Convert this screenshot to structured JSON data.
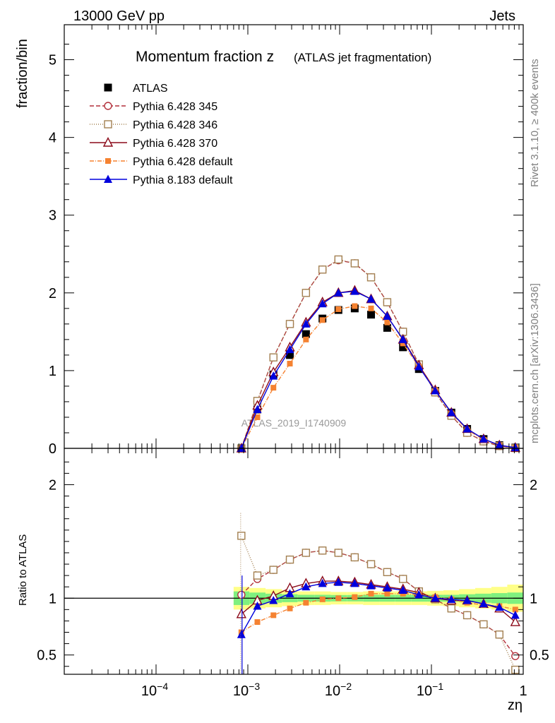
{
  "header": {
    "energy_label": "13000 GeV pp",
    "category_label": "Jets"
  },
  "side_labels": {
    "rivet": "Rivet 3.1.10, ≥ 400k events",
    "source": "mcplots.cern.ch [arXiv:1306.3436]"
  },
  "watermark": "ATLAS_2019_I1740909",
  "colors": {
    "atlas": "#000000",
    "py345": "#b22f3a",
    "py346": "#a38051",
    "py370": "#8b0a1a",
    "pydef": "#f58231",
    "py8": "#0000dd",
    "band_inner": "#7ff07f",
    "band_outer": "#ffff88"
  },
  "chart_data": [
    {
      "type": "line",
      "panel": "main",
      "title": "Momentum fraction z",
      "subtitle": "(ATLAS jet fragmentation)",
      "xlabel": "zη",
      "ylabel": "fraction/bin",
      "xscale": "log",
      "xlim": [
        1e-05,
        1
      ],
      "ylim": [
        0,
        5.45
      ],
      "x_tick_labels": [
        "10−4",
        "10−3",
        "10−2",
        "10−1",
        "1"
      ],
      "y_tick_labels": [
        "0",
        "1",
        "2",
        "3",
        "4",
        "5"
      ],
      "x": [
        0.00085,
        0.00127,
        0.0019,
        0.00287,
        0.0043,
        0.0065,
        0.0097,
        0.0146,
        0.022,
        0.033,
        0.049,
        0.073,
        0.11,
        0.165,
        0.245,
        0.37,
        0.55,
        0.82
      ],
      "series": [
        {
          "name": "ATLAS",
          "key": "atlas",
          "marker": "square-filled",
          "dash": "none",
          "values": [
            0.0,
            0.5,
            0.95,
            1.2,
            1.47,
            1.67,
            1.78,
            1.8,
            1.72,
            1.55,
            1.3,
            1.02,
            0.74,
            0.46,
            0.25,
            0.12,
            0.04,
            0.01
          ]
        },
        {
          "name": "Pythia 6.428 345",
          "key": "py345",
          "marker": "circle-open",
          "dash": "6,3",
          "values": [
            0.0,
            0.6,
            1.17,
            1.6,
            2.0,
            2.3,
            2.42,
            2.38,
            2.2,
            1.88,
            1.5,
            1.08,
            0.72,
            0.42,
            0.2,
            0.09,
            0.03,
            0.005
          ]
        },
        {
          "name": "Pythia 6.428 346",
          "key": "py346",
          "marker": "square-open",
          "dash": "1,2",
          "values": [
            0.0,
            0.61,
            1.17,
            1.6,
            2.0,
            2.3,
            2.43,
            2.38,
            2.2,
            1.88,
            1.5,
            1.08,
            0.72,
            0.42,
            0.2,
            0.09,
            0.03,
            0.004
          ]
        },
        {
          "name": "Pythia 6.428 370",
          "key": "py370",
          "marker": "triangle-open",
          "dash": "none",
          "values": [
            0.0,
            0.55,
            0.98,
            1.3,
            1.62,
            1.88,
            2.0,
            2.03,
            1.92,
            1.7,
            1.4,
            1.07,
            0.75,
            0.46,
            0.25,
            0.12,
            0.04,
            0.008
          ]
        },
        {
          "name": "Pythia 6.428 default",
          "key": "pydef",
          "marker": "square-filled-small",
          "dash": "6,2,1,2",
          "values": [
            0.0,
            0.4,
            0.78,
            1.09,
            1.4,
            1.65,
            1.79,
            1.83,
            1.8,
            1.62,
            1.35,
            1.05,
            0.75,
            0.45,
            0.24,
            0.11,
            0.035,
            0.008
          ]
        },
        {
          "name": "Pythia 8.183 default",
          "key": "py8",
          "marker": "triangle-filled",
          "dash": "none",
          "values": [
            0.0,
            0.5,
            0.93,
            1.27,
            1.6,
            1.86,
            2.0,
            2.02,
            1.92,
            1.7,
            1.4,
            1.05,
            0.74,
            0.46,
            0.25,
            0.12,
            0.04,
            0.009
          ]
        }
      ]
    },
    {
      "type": "line",
      "panel": "ratio",
      "ylabel": "Ratio to ATLAS",
      "xscale": "log",
      "xlim": [
        1e-05,
        1
      ],
      "ylim": [
        0.33,
        2.32
      ],
      "y_tick_labels": [
        "0.5",
        "1",
        "2"
      ],
      "x": [
        0.00085,
        0.00127,
        0.0019,
        0.00287,
        0.0043,
        0.0065,
        0.0097,
        0.0146,
        0.022,
        0.033,
        0.049,
        0.073,
        0.11,
        0.165,
        0.245,
        0.37,
        0.55,
        0.82
      ],
      "band": {
        "x_edges": [
          0.0007,
          0.00104,
          0.00156,
          0.00235,
          0.0035,
          0.0053,
          0.008,
          0.012,
          0.018,
          0.027,
          0.04,
          0.06,
          0.09,
          0.135,
          0.2,
          0.3,
          0.45,
          0.67,
          1.0
        ],
        "inner_half": [
          0.06,
          0.05,
          0.04,
          0.035,
          0.03,
          0.03,
          0.028,
          0.028,
          0.03,
          0.03,
          0.03,
          0.03,
          0.03,
          0.03,
          0.035,
          0.04,
          0.045,
          0.05
        ],
        "outer_half": [
          0.1,
          0.09,
          0.08,
          0.07,
          0.06,
          0.06,
          0.055,
          0.055,
          0.06,
          0.06,
          0.06,
          0.06,
          0.065,
          0.07,
          0.08,
          0.09,
          0.1,
          0.12
        ]
      },
      "series": [
        {
          "key": "py345",
          "values": [
            1.03,
            1.17,
            1.25,
            1.34,
            1.4,
            1.42,
            1.4,
            1.36,
            1.3,
            1.23,
            1.17,
            1.06,
            0.99,
            0.91,
            0.85,
            0.77,
            0.68,
            0.49
          ]
        },
        {
          "key": "py346",
          "values": [
            1.55,
            1.2,
            1.25,
            1.34,
            1.4,
            1.42,
            1.4,
            1.36,
            1.3,
            1.23,
            1.17,
            1.06,
            0.99,
            0.91,
            0.85,
            0.77,
            0.68,
            0.37
          ]
        },
        {
          "key": "py370",
          "values": [
            0.86,
            0.98,
            1.02,
            1.09,
            1.13,
            1.15,
            1.15,
            1.14,
            1.12,
            1.1,
            1.08,
            1.05,
            1.0,
            0.98,
            0.98,
            0.95,
            0.91,
            0.79
          ]
        },
        {
          "key": "pydef",
          "values": [
            0.7,
            0.79,
            0.85,
            0.91,
            0.96,
            0.99,
            1.0,
            1.01,
            1.04,
            1.04,
            1.04,
            1.03,
            1.01,
            0.99,
            0.96,
            0.94,
            0.93,
            0.9
          ]
        },
        {
          "key": "py8",
          "values": [
            0.68,
            0.93,
            0.98,
            1.04,
            1.1,
            1.13,
            1.14,
            1.13,
            1.11,
            1.09,
            1.07,
            1.03,
            1.0,
            0.99,
            0.98,
            0.95,
            0.92,
            0.85
          ]
        }
      ]
    }
  ]
}
